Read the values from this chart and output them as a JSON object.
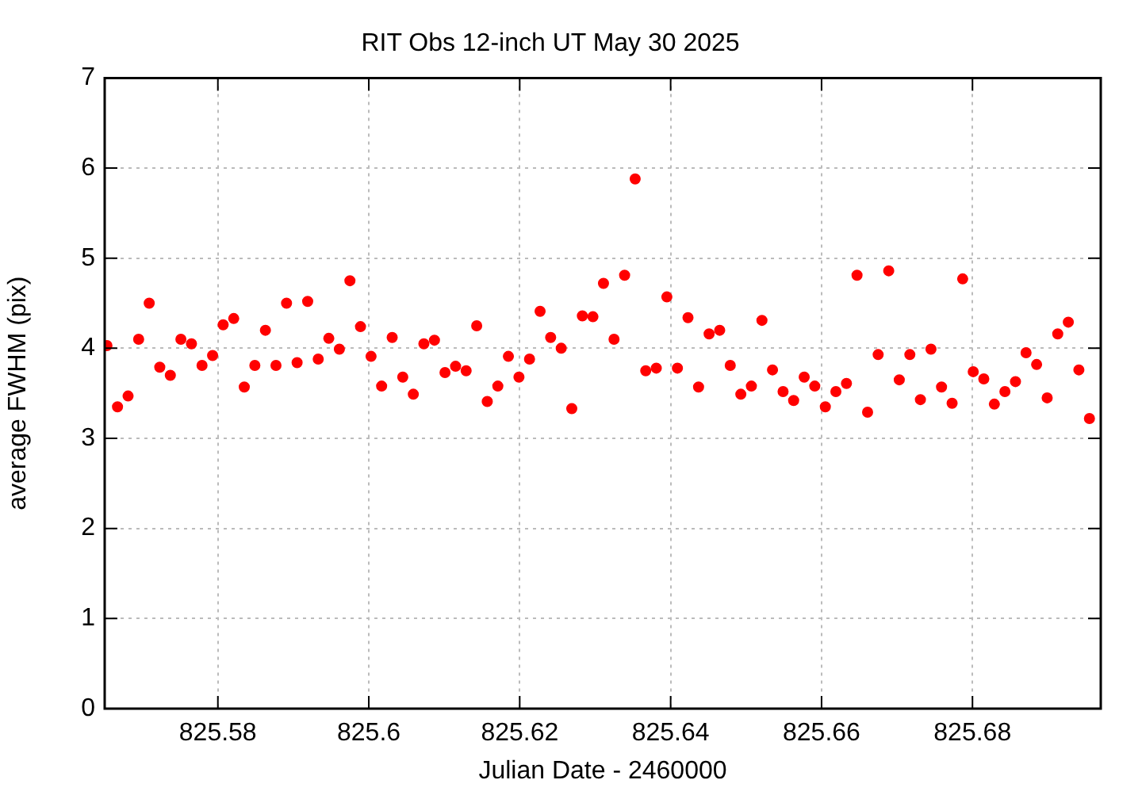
{
  "chart_data": {
    "type": "scatter",
    "title": "RIT Obs 12-inch UT May 30 2025",
    "xlabel": "Julian Date - 2460000",
    "ylabel": "average FWHM (pix)",
    "x": [
      825.5653,
      825.5667,
      825.5681,
      825.5695,
      825.5709,
      825.5723,
      825.5737,
      825.5751,
      825.5765,
      825.5779,
      825.5793,
      825.5807,
      825.5821,
      825.5835,
      825.5849,
      825.5863,
      825.5877,
      825.5891,
      825.5905,
      825.5919,
      825.5933,
      825.5947,
      825.5961,
      825.5975,
      825.5989,
      825.6003,
      825.6017,
      825.6031,
      825.6045,
      825.6059,
      825.6073,
      825.6087,
      825.6101,
      825.6115,
      825.6129,
      825.6143,
      825.6157,
      825.6171,
      825.6185,
      825.6199,
      825.6213,
      825.6227,
      825.6241,
      825.6255,
      825.6269,
      825.6283,
      825.6297,
      825.6311,
      825.6325,
      825.6339,
      825.6353,
      825.6367,
      825.6381,
      825.6395,
      825.6409,
      825.6423,
      825.6437,
      825.6451,
      825.6465,
      825.6479,
      825.6493,
      825.6507,
      825.6521,
      825.6535,
      825.6549,
      825.6563,
      825.6577,
      825.6591,
      825.6605,
      825.6619,
      825.6633,
      825.6647,
      825.6661,
      825.6675,
      825.6689,
      825.6703,
      825.6717,
      825.6731,
      825.6745,
      825.6759,
      825.6773,
      825.6787,
      825.6801,
      825.6815,
      825.6829,
      825.6843,
      825.6857,
      825.6871,
      825.6885,
      825.6899,
      825.6913,
      825.6927,
      825.6941,
      825.6955
    ],
    "series": [
      {
        "color": "#ff0000",
        "values": [
          4.03,
          3.35,
          3.47,
          4.1,
          4.5,
          3.79,
          3.7,
          4.1,
          4.05,
          3.81,
          3.92,
          4.26,
          4.33,
          3.57,
          3.81,
          4.2,
          3.81,
          4.5,
          3.84,
          4.52,
          3.88,
          4.11,
          3.99,
          4.75,
          4.24,
          3.91,
          3.58,
          4.12,
          3.68,
          3.49,
          4.05,
          4.09,
          3.73,
          3.8,
          3.75,
          4.25,
          3.41,
          3.58,
          3.91,
          3.68,
          3.88,
          4.41,
          4.12,
          4.0,
          3.33,
          4.36,
          4.35,
          4.72,
          4.1,
          4.81,
          5.88,
          3.75,
          3.78,
          4.57,
          3.78,
          4.34,
          3.57,
          4.16,
          4.2,
          3.81,
          3.49,
          3.58,
          4.31,
          3.76,
          3.52,
          3.42,
          3.68,
          3.58,
          3.35,
          3.52,
          3.61,
          4.81,
          3.29,
          3.93,
          4.86,
          3.65,
          3.93,
          3.43,
          3.99,
          3.57,
          3.39,
          4.77,
          3.74,
          3.66,
          3.38,
          3.52,
          3.63,
          3.95,
          3.82,
          3.45,
          4.16,
          4.29,
          3.76,
          3.22
        ]
      }
    ],
    "xlim": [
      825.565,
      825.697
    ],
    "xticks": [
      825.58,
      825.6,
      825.62,
      825.64,
      825.66,
      825.68
    ],
    "ylim": [
      0,
      7
    ],
    "yticks": [
      0,
      1,
      2,
      3,
      4,
      5,
      6,
      7
    ],
    "grid": true,
    "marker": "circle",
    "legend": false
  }
}
